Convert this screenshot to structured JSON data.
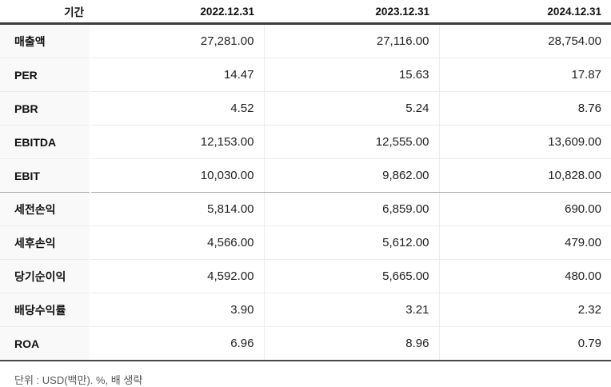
{
  "table": {
    "header": {
      "period_label": "기간",
      "columns": [
        "2022.12.31",
        "2023.12.31",
        "2024.12.31"
      ]
    },
    "rows": [
      {
        "label": "매출액",
        "values": [
          "27,281.00",
          "27,116.00",
          "28,754.00"
        ]
      },
      {
        "label": "PER",
        "values": [
          "14.47",
          "15.63",
          "17.87"
        ]
      },
      {
        "label": "PBR",
        "values": [
          "4.52",
          "5.24",
          "8.76"
        ]
      },
      {
        "label": "EBITDA",
        "values": [
          "12,153.00",
          "12,555.00",
          "13,609.00"
        ]
      },
      {
        "label": "EBIT",
        "values": [
          "10,030.00",
          "9,862.00",
          "10,828.00"
        ]
      },
      {
        "label": "세전손익",
        "values": [
          "5,814.00",
          "6,859.00",
          "690.00"
        ]
      },
      {
        "label": "세후손익",
        "values": [
          "4,566.00",
          "5,612.00",
          "479.00"
        ]
      },
      {
        "label": "당기순이익",
        "values": [
          "4,592.00",
          "5,665.00",
          "480.00"
        ]
      },
      {
        "label": "배당수익률",
        "values": [
          "3.90",
          "3.21",
          "2.32"
        ]
      },
      {
        "label": "ROA",
        "values": [
          "6.96",
          "8.96",
          "0.79"
        ]
      }
    ],
    "footer_note": "단위 : USD(백만). %, 배 생략"
  },
  "colors": {
    "header_border": "#3c3c3c",
    "row_border": "#ececec",
    "section_border": "#a9a9a9",
    "bottom_border": "#484848",
    "label_column_bg": "#f9f9f9",
    "text_primary": "#111111",
    "text_value": "#222222",
    "text_note": "#565656"
  }
}
